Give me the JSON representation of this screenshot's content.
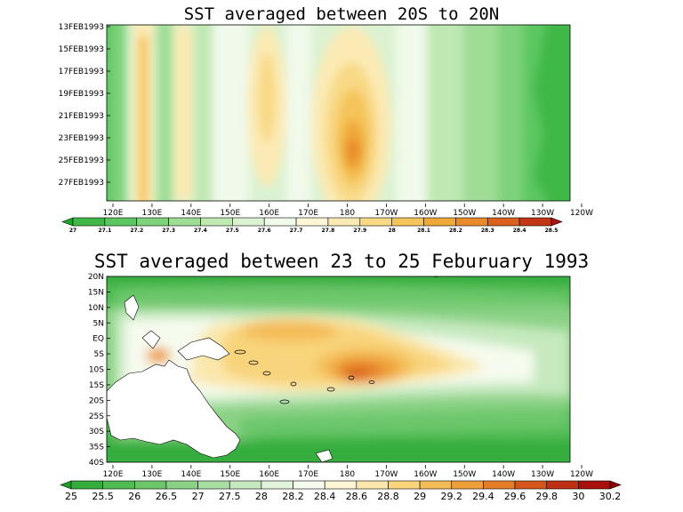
{
  "chart_data": [
    {
      "type": "heatmap",
      "title": "SST averaged between 20S to 20N",
      "x_ticks": [
        "120E",
        "130E",
        "140E",
        "150E",
        "160E",
        "170E",
        "180",
        "170W",
        "160W",
        "150W",
        "140W",
        "130W",
        "120W"
      ],
      "y_ticks": [
        "13FEB1993",
        "15FEB1993",
        "17FEB1993",
        "19FEB1993",
        "21FEB1993",
        "23FEB1993",
        "25FEB1993",
        "27FEB1993"
      ],
      "colorbar_levels": [
        "27",
        "27.1",
        "27.2",
        "27.3",
        "27.4",
        "27.5",
        "27.6",
        "27.7",
        "27.8",
        "27.9",
        "28",
        "28.1",
        "28.2",
        "28.3",
        "28.4",
        "28.5"
      ],
      "colorbar_colors": [
        "#1ea62b",
        "#3fb847",
        "#5cc761",
        "#7fd27c",
        "#9fdd96",
        "#bfe8b3",
        "#dbf2d2",
        "#f0f9ea",
        "#fdf7d8",
        "#fbeab4",
        "#f8d985",
        "#f5c45a",
        "#f0a939",
        "#e8892a",
        "#d9601d",
        "#c23615",
        "#b01010"
      ],
      "features": {
        "warm_pool_peak_lon": "175E-175W",
        "warm_pool_peak_dates": "21FEB1993-27FEB1993",
        "max_value": 28.5
      }
    },
    {
      "type": "heatmap",
      "title": "SST averaged between 23 to 25 Feburuary 1993",
      "x_ticks": [
        "120E",
        "130E",
        "140E",
        "150E",
        "160E",
        "170E",
        "180",
        "170W",
        "160W",
        "150W",
        "140W",
        "130W",
        "120W"
      ],
      "y_ticks": [
        "20N",
        "15N",
        "10N",
        "5N",
        "EQ",
        "5S",
        "10S",
        "15S",
        "20S",
        "25S",
        "30S",
        "35S",
        "40S"
      ],
      "colorbar_levels": [
        "25",
        "25.5",
        "26",
        "26.5",
        "27",
        "27.5",
        "28",
        "28.2",
        "28.4",
        "28.6",
        "28.8",
        "29",
        "29.2",
        "29.4",
        "29.6",
        "29.8",
        "30",
        "30.2"
      ],
      "colorbar_colors": [
        "#1e9e2b",
        "#34ad3c",
        "#4fbb52",
        "#6cc76a",
        "#8ad285",
        "#a8dea2",
        "#c6e9bf",
        "#e2f3db",
        "#f6fbef",
        "#fdf6d6",
        "#fbe7ac",
        "#f8d47c",
        "#f4bc56",
        "#ee9f39",
        "#e47c28",
        "#d4561c",
        "#bf2f13",
        "#a8100c",
        "#8e0000"
      ],
      "features": {
        "warmest_region": "10S-15S, 175E-170W",
        "max_value": 30.2
      }
    }
  ],
  "colors": {
    "background": "#ffffff",
    "land": "#ffffff",
    "coast": "#000000"
  }
}
